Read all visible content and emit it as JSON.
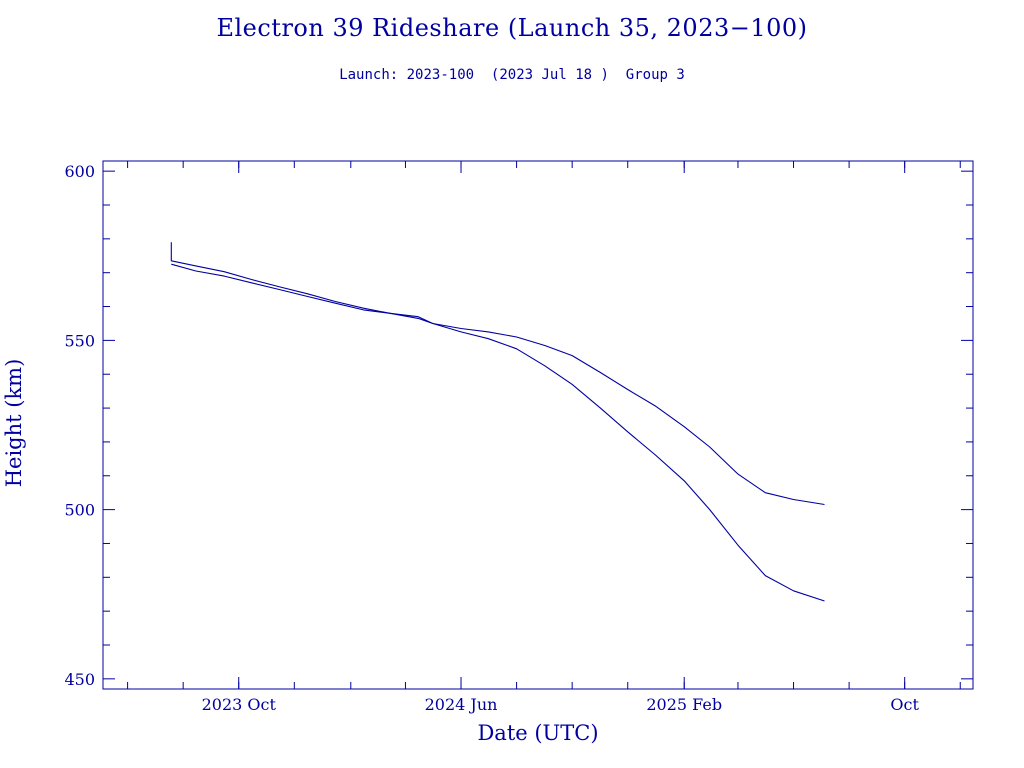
{
  "header": {
    "title": "Electron 39 Rideshare (Launch 35, 2023−100)",
    "subtitle": "Launch: 2023-100  (2023 Jul 18 )  Group 3"
  },
  "colors": {
    "ink": "#0000a0",
    "background": "#ffffff"
  },
  "chart_data": {
    "type": "line",
    "title": "Electron 39 Rideshare (Launch 35, 2023−100)",
    "subtitle": "Launch: 2023-100  (2023 Jul 18 )  Group 3",
    "xlabel": "Date (UTC)",
    "ylabel": "Height (km)",
    "x_type": "date",
    "xlim": [
      "2023-05-05",
      "2025-12-15"
    ],
    "ylim": [
      447,
      603
    ],
    "grid": false,
    "legend": "none",
    "x_ticks": [
      {
        "date": "2023-10-01",
        "label": "2023 Oct"
      },
      {
        "date": "2024-06-01",
        "label": "2024 Jun"
      },
      {
        "date": "2025-02-01",
        "label": "2025 Feb"
      },
      {
        "date": "2025-10-01",
        "label": "Oct"
      }
    ],
    "y_ticks": [
      {
        "value": 450,
        "label": "450"
      },
      {
        "value": 500,
        "label": "500"
      },
      {
        "value": 550,
        "label": "550"
      },
      {
        "value": 600,
        "label": "600"
      }
    ],
    "series": [
      {
        "points": [
          [
            "2023-07-19",
            579
          ],
          [
            "2023-07-19",
            573.5
          ],
          [
            "2023-08-15",
            572.0
          ],
          [
            "2023-09-15",
            570.3
          ],
          [
            "2023-10-15",
            568.0
          ],
          [
            "2023-11-15",
            565.8
          ],
          [
            "2023-12-15",
            563.8
          ],
          [
            "2024-01-15",
            561.5
          ],
          [
            "2024-02-15",
            559.5
          ],
          [
            "2024-03-15",
            558.0
          ],
          [
            "2024-04-15",
            556.5
          ],
          [
            "2024-05-01",
            555.0
          ],
          [
            "2024-06-01",
            553.5
          ],
          [
            "2024-07-01",
            552.5
          ],
          [
            "2024-08-01",
            551.0
          ],
          [
            "2024-09-01",
            548.5
          ],
          [
            "2024-10-01",
            545.5
          ],
          [
            "2024-11-01",
            540.5
          ],
          [
            "2024-12-01",
            535.5
          ],
          [
            "2025-01-01",
            530.5
          ],
          [
            "2025-02-01",
            524.5
          ],
          [
            "2025-03-01",
            518.5
          ],
          [
            "2025-04-01",
            510.5
          ],
          [
            "2025-05-01",
            505.0
          ],
          [
            "2025-06-01",
            503.0
          ],
          [
            "2025-07-05",
            501.5
          ]
        ]
      },
      {
        "points": [
          [
            "2023-07-19",
            572.5
          ],
          [
            "2023-08-15",
            570.5
          ],
          [
            "2023-09-15",
            569.0
          ],
          [
            "2023-10-15",
            567.0
          ],
          [
            "2023-11-15",
            565.0
          ],
          [
            "2023-12-15",
            563.0
          ],
          [
            "2024-01-15",
            561.0
          ],
          [
            "2024-02-15",
            559.0
          ],
          [
            "2024-03-15",
            558.0
          ],
          [
            "2024-04-15",
            557.0
          ],
          [
            "2024-05-01",
            555.0
          ],
          [
            "2024-06-01",
            552.5
          ],
          [
            "2024-07-01",
            550.5
          ],
          [
            "2024-08-01",
            547.5
          ],
          [
            "2024-09-01",
            542.5
          ],
          [
            "2024-10-01",
            537.0
          ],
          [
            "2024-11-01",
            530.0
          ],
          [
            "2024-12-01",
            523.0
          ],
          [
            "2025-01-01",
            516.0
          ],
          [
            "2025-02-01",
            508.5
          ],
          [
            "2025-03-01",
            500.0
          ],
          [
            "2025-04-01",
            489.5
          ],
          [
            "2025-05-01",
            480.5
          ],
          [
            "2025-06-01",
            476.0
          ],
          [
            "2025-07-05",
            473.0
          ]
        ]
      }
    ]
  }
}
